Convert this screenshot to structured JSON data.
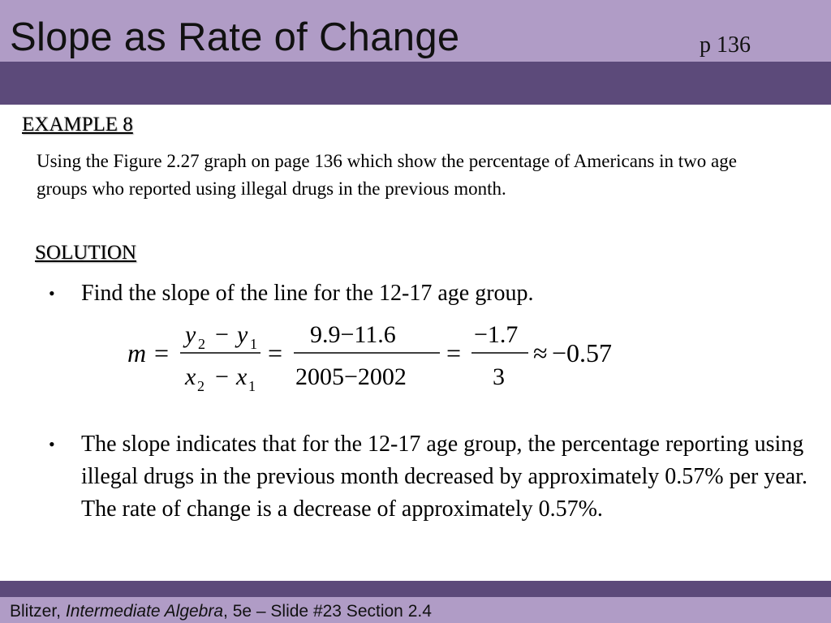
{
  "slide": {
    "title": "Slope as Rate of Change",
    "page_ref": "p 136"
  },
  "example": {
    "heading": "EXAMPLE 8",
    "text": "Using the Figure 2.27 graph on page 136 which show the percentage of Americans in two age groups who reported using illegal drugs in the previous month."
  },
  "solution": {
    "heading": "SOLUTION",
    "bullet_char": "•",
    "bullets": [
      "Find the slope of the line for the 12-17 age group.",
      "The slope indicates that for the 12-17 age group, the percentage reporting using illegal drugs in the previous month decreased by approximately 0.57% per year.  The rate of change is a decrease of approximately 0.57%."
    ]
  },
  "formula": {
    "m": "m",
    "eq": "=",
    "y2": "y",
    "sub2": "2",
    "minus": "−",
    "y1": "y",
    "sub1": "1",
    "x2": "x",
    "x1": "x",
    "num2": "9.9−11.6",
    "den2": "2005−2002",
    "num3": "−1.7",
    "den3": "3",
    "approx": "≈",
    "result": "−0.57"
  },
  "footer": {
    "author": "Blitzer, ",
    "book": "Intermediate Algebra",
    "rest": ", 5e – Slide #23 Section 2.4"
  }
}
